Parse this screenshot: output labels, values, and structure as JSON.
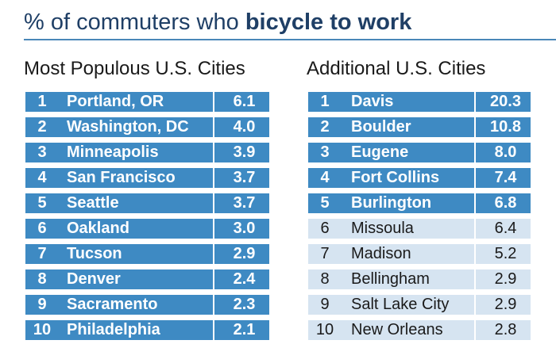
{
  "title": {
    "prefix": "% of commuters who ",
    "bold": "bicycle to work"
  },
  "chart_data": [
    {
      "type": "table",
      "title": "Most Populous U.S. Cities",
      "rows": [
        {
          "rank": "1",
          "city": "Portland, OR",
          "value": "6.1",
          "highlight": true
        },
        {
          "rank": "2",
          "city": "Washington, DC",
          "value": "4.0",
          "highlight": true
        },
        {
          "rank": "3",
          "city": "Minneapolis",
          "value": "3.9",
          "highlight": true
        },
        {
          "rank": "4",
          "city": "San Francisco",
          "value": "3.7",
          "highlight": true
        },
        {
          "rank": "5",
          "city": "Seattle",
          "value": "3.7",
          "highlight": true
        },
        {
          "rank": "6",
          "city": "Oakland",
          "value": "3.0",
          "highlight": true
        },
        {
          "rank": "7",
          "city": "Tucson",
          "value": "2.9",
          "highlight": true
        },
        {
          "rank": "8",
          "city": "Denver",
          "value": "2.4",
          "highlight": true
        },
        {
          "rank": "9",
          "city": "Sacramento",
          "value": "2.3",
          "highlight": true
        },
        {
          "rank": "10",
          "city": "Philadelphia",
          "value": "2.1",
          "highlight": true
        }
      ]
    },
    {
      "type": "table",
      "title": "Additional U.S. Cities",
      "rows": [
        {
          "rank": "1",
          "city": "Davis",
          "value": "20.3",
          "highlight": true
        },
        {
          "rank": "2",
          "city": "Boulder",
          "value": "10.8",
          "highlight": true
        },
        {
          "rank": "3",
          "city": "Eugene",
          "value": "8.0",
          "highlight": true
        },
        {
          "rank": "4",
          "city": "Fort Collins",
          "value": "7.4",
          "highlight": true
        },
        {
          "rank": "5",
          "city": "Burlington",
          "value": "6.8",
          "highlight": true
        },
        {
          "rank": "6",
          "city": "Missoula",
          "value": "6.4",
          "highlight": false
        },
        {
          "rank": "7",
          "city": "Madison",
          "value": "5.2",
          "highlight": false
        },
        {
          "rank": "8",
          "city": "Bellingham",
          "value": "2.9",
          "highlight": false
        },
        {
          "rank": "9",
          "city": "Salt Lake City",
          "value": "2.9",
          "highlight": false
        },
        {
          "rank": "10",
          "city": "New Orleans",
          "value": "2.8",
          "highlight": false
        }
      ]
    }
  ],
  "colors": {
    "title": "#1f3f66",
    "rule": "#4a87b8",
    "highlight_row": "#3e8ac3",
    "plain_row": "#d6e4f1"
  }
}
